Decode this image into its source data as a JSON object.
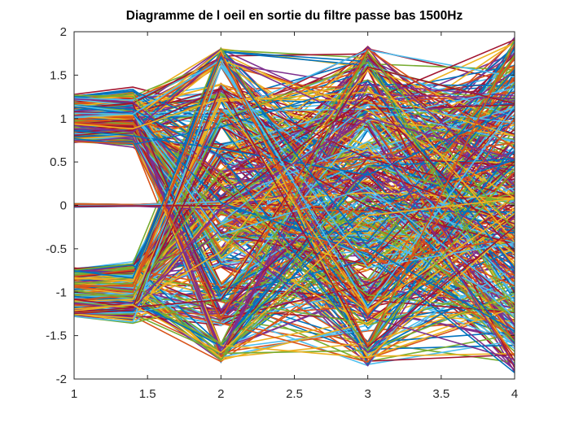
{
  "chart_data": {
    "type": "line",
    "title": "Diagramme de l oeil en sortie du filtre passe bas 1500Hz",
    "xlabel": "",
    "ylabel": "",
    "xlim": [
      1,
      4
    ],
    "ylim": [
      -2,
      2
    ],
    "xticks": [
      1,
      1.5,
      2,
      2.5,
      3,
      3.5,
      4
    ],
    "yticks": [
      -2,
      -1.5,
      -1,
      -0.5,
      0,
      0.5,
      1,
      1.5,
      2
    ],
    "x": [
      1,
      1.4,
      2,
      3,
      4
    ],
    "trace_count": 500,
    "colormap": [
      "#0072BD",
      "#D95319",
      "#EDB120",
      "#7E2F8E",
      "#77AC30",
      "#4DBEEE",
      "#A2142F"
    ],
    "levels_at_x1": [
      -1,
      0,
      1
    ],
    "level_spread_at_x1": 0.28,
    "eye_levels": [
      -1.7,
      -1.3,
      -1,
      -0.6,
      -0.3,
      0,
      0.3,
      0.6,
      1,
      1.3,
      1.7
    ],
    "x_at_max_excursion": 3,
    "max_excursion": [
      -1.97,
      1.97
    ],
    "grid": false,
    "legend": "none"
  }
}
